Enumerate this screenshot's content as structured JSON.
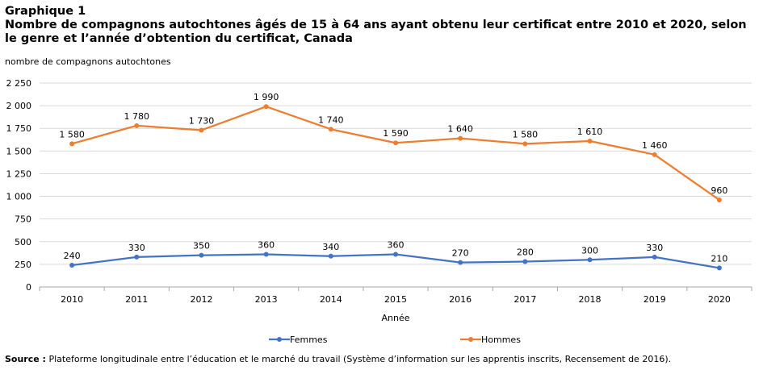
{
  "figure": {
    "label": "Graphique 1",
    "title_line1": "Nombre de compagnons autochtones âgés de 15 à 64 ans ayant obtenu leur certificat entre 2010 et 2020, selon",
    "title_line2": "le genre et l’année d’obtention du certificat, Canada",
    "source_label": "Source :",
    "source_text": "Plateforme longitudinale entre l’éducation et le marché du travail (Système d’information sur les apprentis inscrits, Recensement de 2016)."
  },
  "chart_data": {
    "type": "line",
    "title": "Nombre de compagnons autochtones âgés de 15 à 64 ans ayant obtenu leur certificat entre 2010 et 2020, selon le genre et l’année d’obtention du certificat, Canada",
    "xlabel": "Année",
    "ylabel": "nombre de compagnons autochtones",
    "categories": [
      "2010",
      "2011",
      "2012",
      "2013",
      "2014",
      "2015",
      "2016",
      "2017",
      "2018",
      "2019",
      "2020"
    ],
    "ylim": [
      0,
      2250
    ],
    "yticks": [
      0,
      250,
      500,
      750,
      1000,
      1250,
      1500,
      1750,
      2000,
      2250
    ],
    "ytick_labels": [
      "0",
      "250",
      "500",
      "750",
      "1 000",
      "1 250",
      "1 500",
      "1 750",
      "2 000",
      "2 250"
    ],
    "grid": true,
    "legend_position": "bottom",
    "series": [
      {
        "name": "Femmes",
        "color": "#4472C4",
        "values": [
          240,
          330,
          350,
          360,
          340,
          360,
          270,
          280,
          300,
          330,
          210
        ],
        "labels": [
          "240",
          "330",
          "350",
          "360",
          "340",
          "360",
          "270",
          "280",
          "300",
          "330",
          "210"
        ]
      },
      {
        "name": "Hommes",
        "color": "#ED7D31",
        "values": [
          1580,
          1780,
          1730,
          1990,
          1740,
          1590,
          1640,
          1580,
          1610,
          1460,
          960
        ],
        "labels": [
          "1 580",
          "1 780",
          "1 730",
          "1 990",
          "1 740",
          "1 590",
          "1 640",
          "1 580",
          "1 610",
          "1 460",
          "960"
        ]
      }
    ]
  }
}
